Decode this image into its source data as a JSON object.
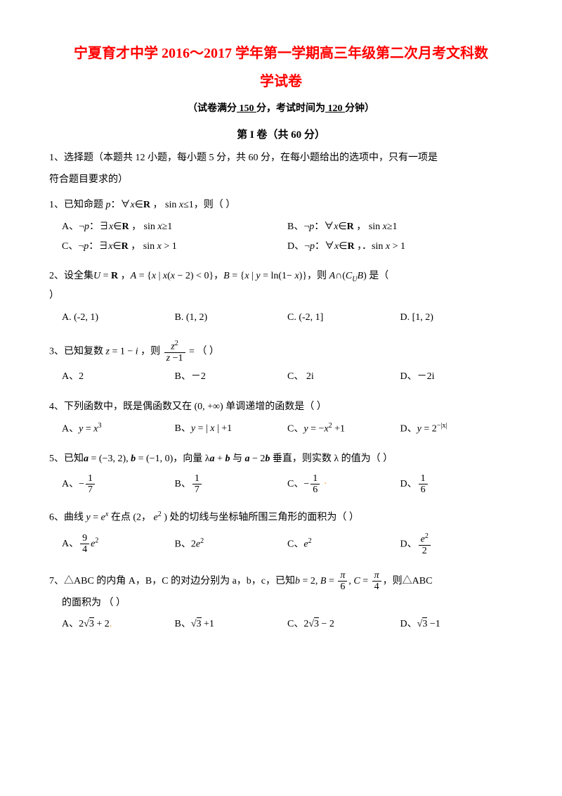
{
  "header": {
    "title_line1": "宁夏育才中学 2016～2017 学年第一学期高三年级第二次月考文科数",
    "title_line2": "学试卷",
    "meta_prefix": "（试卷满分",
    "meta_score": "  150  ",
    "meta_mid": "分，考试时间为",
    "meta_time": "  120  ",
    "meta_suffix": "分钟）",
    "section1": "第 I 卷（共 60 分）"
  },
  "instruction": {
    "line1": "1、选择题（本题共 12 小题，每小题 5 分，共 60 分，在每小题给出的选项中，只有一项是",
    "line2": "符合题目要求的）"
  },
  "q1": {
    "stem_pre": "1、已知命题 ",
    "stem_mid1": "：∀",
    "stem_mid2": "∈",
    "stem_mid3": " ， sin ",
    "stem_mid4": "≤1，则（    ）",
    "A_pre": "A、¬",
    "A_mid1": "：∃",
    "A_mid2": "∈",
    "A_mid3": " ， sin ",
    "A_mid4": "≥1",
    "B_pre": "B、¬",
    "B_mid4": "≥1",
    "C_pre": "C、¬",
    "C_mid4": " > 1",
    "D_pre": "D、¬",
    "D_sin": " ，．sin ",
    "D_mid4": " > 1"
  },
  "q2": {
    "stem_pre": "2、设全集",
    "stem_u": "U",
    "stem_eq": " = ",
    "stem_r": "R",
    "stem_c": " ，",
    "stem_a": "A",
    "stem_aset": " = {",
    "stem_x1": "x",
    "stem_bar1": " | ",
    "stem_cond1": "x",
    "stem_paren1": "(",
    "stem_xm2": "x",
    "stem_minus2": " − 2) < 0}，",
    "stem_b": "B",
    "stem_bset": " = {",
    "stem_x2": "x",
    "stem_bar2": " | ",
    "stem_y": "y",
    "stem_ln": " = ln(1− ",
    "stem_xln": "x",
    "stem_close": ")}，则 ",
    "stem_acap": "A",
    "stem_cap": "∩(",
    "stem_cu": "C",
    "stem_usub": "U",
    "stem_bcap": "B",
    "stem_end": ") 是（",
    "line2": "）",
    "optA": "A. (-2, 1)",
    "optB": "B.  (1, 2)",
    "optC": "C.  (-2, 1]",
    "optD": "D.   [1, 2)"
  },
  "q3": {
    "stem": "3、已知复数 ",
    "z": "z",
    "eq": " = 1 − ",
    "i": "i",
    "comma": " ，则",
    "frac_num_z": "z",
    "frac_num_2": "2",
    "frac_den_z": "z",
    "frac_den_m1": " −1",
    "end": " = （    ）",
    "optA": "A、2",
    "optB": "B、－2",
    "optC": "C、 2i",
    "optD": "D、－2i"
  },
  "q4": {
    "stem": "4、下列函数中，既是偶函数又在 (0, +∞) 单调递增的函数是（    ）",
    "optA_pre": "A、",
    "optA_y": "y",
    "optA_eq": " = ",
    "optA_x": "x",
    "optA_exp": "3",
    "optB_pre": "B、",
    "optB_expr": " = | ",
    "optB_x2": "x",
    "optB_end": " | +1",
    "optC_pre": "C、",
    "optC_eq": " = −",
    "optC_exp": "2",
    "optC_end": " +1",
    "optD_pre": "D、",
    "optD_eq": " = 2",
    "optD_exp": "−|x|"
  },
  "q5": {
    "stem_pre": "5、已知",
    "a": "a",
    "aeq": " = (−3, 2), ",
    "b": "b",
    "beq": " = (−1, 0)，向量 λ",
    "a2": "a",
    "plus": " + ",
    "b2": "b",
    "with": " 与 ",
    "a3": "a",
    "minus": " − 2",
    "b3": "b",
    "end": " 垂直，则实数 λ 的值为（    ）",
    "optA": "A、",
    "optB": "B、",
    "optC": "C、",
    "optD": "D、"
  },
  "q6": {
    "stem_pre": "6、曲线 ",
    "y": "y",
    "eq": " = ",
    "e": "e",
    "x": "x",
    "at": " 在点 (2， ",
    "e2": "e",
    "sq": "2",
    "end": " ) 处的切线与坐标轴所围三角形的面积为（      ）",
    "optA": "A、",
    "optB": "B、2",
    "optC": "C、",
    "optD": "D、"
  },
  "q7": {
    "stem_pre": "7、△ABC 的内角 A，B，C 的对边分别为 a，b，c，已知",
    "b": "b",
    "eq": " = 2, ",
    "Beq": " = ",
    "comma1": ", ",
    "Ceq": " = ",
    "end": "，则△ABC",
    "line2": "的面积为    （    ）",
    "optA": "A、",
    "optA_end": " + 2",
    "optB": "B、",
    "optB_end": " +1",
    "optC": "C、",
    "optC_end": " − 2",
    "optD": "D、",
    "optD_end": " −1"
  }
}
